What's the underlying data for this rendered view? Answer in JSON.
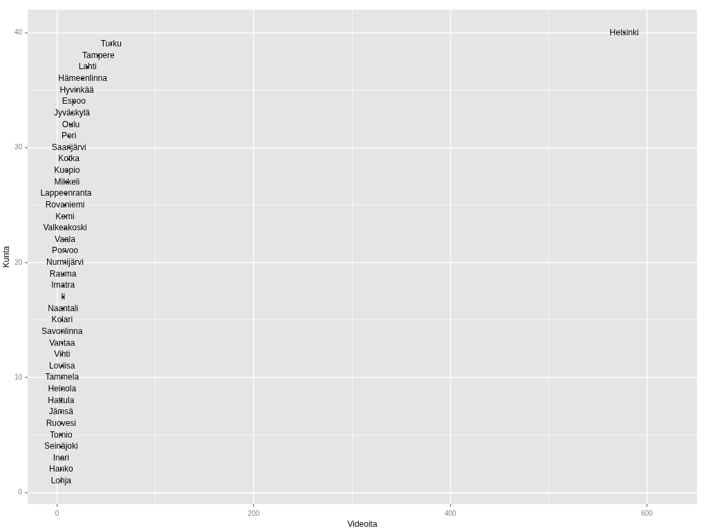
{
  "chart_data": {
    "type": "scatter",
    "xlabel": "Videoita",
    "ylabel": "Kunta",
    "xlim": [
      -30,
      651
    ],
    "ylim": [
      -1,
      42
    ],
    "xticks": [
      0,
      {
        "value": 100,
        "label": null
      },
      200,
      {
        "value": 300,
        "label": null
      },
      400,
      {
        "value": 500,
        "label": null
      },
      600
    ],
    "yticks": [
      0,
      {
        "value": 5,
        "label": null
      },
      10,
      {
        "value": 15,
        "label": null
      },
      20,
      {
        "value": 25,
        "label": null
      },
      30,
      {
        "value": 35,
        "label": null
      },
      40
    ],
    "grid": true,
    "legend": false,
    "series": [
      {
        "color": "#000000",
        "x": [
          4,
          4,
          4,
          4,
          4,
          4,
          4,
          4,
          5,
          5,
          5,
          5,
          5,
          5,
          5,
          6,
          6,
          6,
          6,
          8,
          8,
          8,
          8,
          8,
          8,
          9,
          10,
          10,
          12,
          12,
          12,
          14,
          15,
          17,
          20,
          26,
          31,
          42,
          55,
          577
        ],
        "values": [
          1,
          2,
          3,
          4,
          5,
          6,
          7,
          8,
          9,
          10,
          11,
          12,
          13,
          14,
          15,
          16,
          17,
          18,
          19,
          20,
          21,
          22,
          23,
          24,
          25,
          26,
          27,
          28,
          29,
          30,
          31,
          32,
          33,
          34,
          35,
          36,
          37,
          38,
          39,
          40
        ],
        "value_labels": [
          "Lohja",
          "Hanko",
          "Inari",
          "Seinäjoki",
          "Tornio",
          "Ruovesi",
          "Jämsä",
          "Hattula",
          "Heinola",
          "Tammela",
          "Loviisa",
          "Vihti",
          "Vantaa",
          "Savonlinna",
          "Kolari",
          "Naantali",
          "Ii",
          "Imatra",
          "Rauma",
          "Nurmijärvi",
          "Porvoo",
          "Vaala",
          "Valkeakoski",
          "Kemi",
          "Rovaniemi",
          "Lappeenranta",
          "Mikkeli",
          "Kuopio",
          "Kotka",
          "Saarijärvi",
          "Pori",
          "Oulu",
          "Jyväskylä",
          "Espoo",
          "Hyvinkää",
          "Hämeenlinna",
          "Lahti",
          "Tampere",
          "Turku",
          "Helsinki"
        ]
      }
    ]
  }
}
